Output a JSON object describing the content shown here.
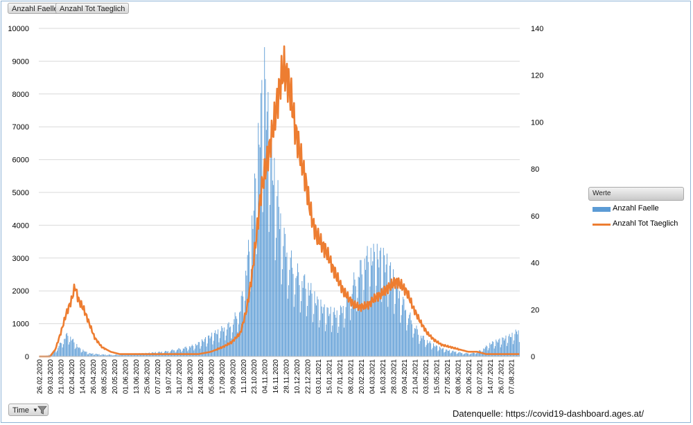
{
  "field_buttons": {
    "cases": "Anzahl Faelle",
    "deaths": "Anzahl Tot Taeglich"
  },
  "legend": {
    "title": "Werte",
    "series_cases": "Anzahl Faelle",
    "series_deaths": "Anzahl Tot Taeglich"
  },
  "filter": {
    "label": "Time"
  },
  "source": "Datenquelle: https://covid19-dashboard.ages.at/",
  "colors": {
    "cases": "#5b9bd5",
    "deaths": "#ed7d31",
    "grid": "#d9d9d9"
  },
  "chart_data": {
    "type": "bar",
    "title": "",
    "xlabel": "",
    "ylabel": "",
    "start_date": "2020-02-26",
    "days": 538,
    "y_left": {
      "min": 0,
      "max": 10000,
      "ticks": [
        0,
        1000,
        2000,
        3000,
        4000,
        5000,
        6000,
        7000,
        8000,
        9000,
        10000
      ]
    },
    "y_right": {
      "min": 0,
      "max": 140,
      "ticks": [
        0,
        20,
        40,
        60,
        80,
        100,
        120,
        140
      ]
    },
    "x_tick_labels": [
      "26.02.2020",
      "09.03.2020",
      "21.03.2020",
      "02.04.2020",
      "14.04.2020",
      "26.04.2020",
      "08.05.2020",
      "20.05.2020",
      "01.06.2020",
      "13.06.2020",
      "25.06.2020",
      "07.07.2020",
      "19.07.2020",
      "31.07.2020",
      "12.08.2020",
      "24.08.2020",
      "05.09.2020",
      "17.09.2020",
      "29.09.2020",
      "11.10.2020",
      "23.10.2020",
      "04.11.2020",
      "16.11.2020",
      "28.11.2020",
      "10.12.2020",
      "22.12.2020",
      "03.01.2021",
      "15.01.2021",
      "27.01.2021",
      "08.02.2021",
      "20.02.2021",
      "04.03.2021",
      "16.03.2021",
      "28.03.2021",
      "09.04.2021",
      "21.04.2021",
      "03.05.2021",
      "15.05.2021",
      "27.05.2021",
      "08.06.2021",
      "20.06.2021",
      "02.07.2021",
      "14.07.2021",
      "26.07.2021",
      "07.08.2021"
    ],
    "series": [
      {
        "name": "Anzahl Faelle",
        "type": "bar",
        "axis": "left",
        "curve": [
          [
            0,
            0
          ],
          [
            10,
            30
          ],
          [
            20,
            250
          ],
          [
            26,
            500
          ],
          [
            32,
            700
          ],
          [
            38,
            480
          ],
          [
            45,
            250
          ],
          [
            55,
            100
          ],
          [
            70,
            60
          ],
          [
            85,
            50
          ],
          [
            100,
            80
          ],
          [
            120,
            100
          ],
          [
            140,
            150
          ],
          [
            160,
            250
          ],
          [
            175,
            350
          ],
          [
            190,
            600
          ],
          [
            205,
            850
          ],
          [
            215,
            1000
          ],
          [
            225,
            1500
          ],
          [
            232,
            2800
          ],
          [
            238,
            4000
          ],
          [
            244,
            6000
          ],
          [
            248,
            7500
          ],
          [
            252,
            8500
          ],
          [
            255,
            7500
          ],
          [
            260,
            6000
          ],
          [
            266,
            5000
          ],
          [
            272,
            3800
          ],
          [
            280,
            3000
          ],
          [
            290,
            2500
          ],
          [
            300,
            2200
          ],
          [
            310,
            1700
          ],
          [
            320,
            1400
          ],
          [
            335,
            1300
          ],
          [
            345,
            1800
          ],
          [
            355,
            2500
          ],
          [
            365,
            3000
          ],
          [
            375,
            3100
          ],
          [
            385,
            3000
          ],
          [
            395,
            2500
          ],
          [
            405,
            1800
          ],
          [
            415,
            1200
          ],
          [
            425,
            700
          ],
          [
            435,
            450
          ],
          [
            445,
            300
          ],
          [
            455,
            200
          ],
          [
            465,
            150
          ],
          [
            475,
            100
          ],
          [
            485,
            100
          ],
          [
            495,
            200
          ],
          [
            505,
            400
          ],
          [
            515,
            500
          ],
          [
            525,
            600
          ],
          [
            537,
            800
          ]
        ]
      },
      {
        "name": "Anzahl Tot Taeglich",
        "type": "line",
        "axis": "right",
        "curve": [
          [
            0,
            0
          ],
          [
            12,
            0
          ],
          [
            18,
            3
          ],
          [
            24,
            10
          ],
          [
            30,
            18
          ],
          [
            36,
            24
          ],
          [
            40,
            30
          ],
          [
            44,
            24
          ],
          [
            50,
            20
          ],
          [
            56,
            14
          ],
          [
            62,
            8
          ],
          [
            70,
            4
          ],
          [
            80,
            2
          ],
          [
            90,
            1
          ],
          [
            100,
            1
          ],
          [
            115,
            1
          ],
          [
            130,
            1
          ],
          [
            150,
            1
          ],
          [
            165,
            1
          ],
          [
            178,
            1
          ],
          [
            192,
            2
          ],
          [
            205,
            4
          ],
          [
            215,
            6
          ],
          [
            225,
            10
          ],
          [
            232,
            20
          ],
          [
            238,
            35
          ],
          [
            244,
            55
          ],
          [
            248,
            70
          ],
          [
            253,
            80
          ],
          [
            258,
            90
          ],
          [
            262,
            98
          ],
          [
            266,
            108
          ],
          [
            270,
            118
          ],
          [
            274,
            123
          ],
          [
            278,
            118
          ],
          [
            282,
            110
          ],
          [
            286,
            98
          ],
          [
            290,
            90
          ],
          [
            294,
            82
          ],
          [
            298,
            75
          ],
          [
            302,
            65
          ],
          [
            306,
            57
          ],
          [
            310,
            52
          ],
          [
            316,
            48
          ],
          [
            322,
            44
          ],
          [
            328,
            38
          ],
          [
            334,
            33
          ],
          [
            340,
            28
          ],
          [
            346,
            25
          ],
          [
            352,
            22
          ],
          [
            360,
            21
          ],
          [
            368,
            22
          ],
          [
            376,
            25
          ],
          [
            384,
            27
          ],
          [
            392,
            30
          ],
          [
            400,
            32
          ],
          [
            406,
            30
          ],
          [
            412,
            27
          ],
          [
            418,
            21
          ],
          [
            426,
            15
          ],
          [
            434,
            10
          ],
          [
            442,
            7
          ],
          [
            450,
            5
          ],
          [
            460,
            4
          ],
          [
            470,
            3
          ],
          [
            480,
            2
          ],
          [
            490,
            2
          ],
          [
            500,
            1
          ],
          [
            510,
            1
          ],
          [
            520,
            1
          ],
          [
            537,
            1
          ]
        ]
      }
    ]
  }
}
